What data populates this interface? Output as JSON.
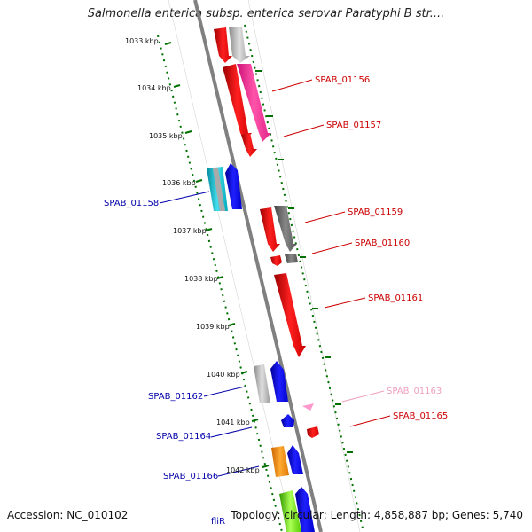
{
  "title": "Salmonella enterica subsp. enterica serovar Paratyphi B str....",
  "footer": {
    "accession": "Accession: NC_010102",
    "topology": "Topology: circular; Length: 4,858,887 bp; Genes: 5,740"
  },
  "colors": {
    "background": "#ffffff",
    "backbone": "#808080",
    "tick": "#007000",
    "forward_label": "#cc0000",
    "reverse_label": "#0000aa",
    "faded_label": "#f0a0c0"
  },
  "scale_labels": [
    "1033 kbp",
    "1034 kbp",
    "1035 kbp",
    "1036 kbp",
    "1037 kbp",
    "1038 kbp",
    "1039 kbp",
    "1040 kbp",
    "1041 kbp",
    "1042 kbp"
  ],
  "gene_labels": [
    {
      "text": "SPAB_01156",
      "color": "#cc0000"
    },
    {
      "text": "SPAB_01157",
      "color": "#cc0000"
    },
    {
      "text": "SPAB_01158",
      "color": "#0000aa"
    },
    {
      "text": "SPAB_01159",
      "color": "#cc0000"
    },
    {
      "text": "SPAB_01160",
      "color": "#cc0000"
    },
    {
      "text": "SPAB_01161",
      "color": "#cc0000"
    },
    {
      "text": "SPAB_01162",
      "color": "#0000aa"
    },
    {
      "text": "SPAB_01163",
      "color": "#f0a0c0"
    },
    {
      "text": "SPAB_01164",
      "color": "#0000aa"
    },
    {
      "text": "SPAB_01165",
      "color": "#cc0000"
    },
    {
      "text": "SPAB_01166",
      "color": "#0000aa"
    },
    {
      "text": "fliR",
      "color": "#0000aa"
    }
  ]
}
